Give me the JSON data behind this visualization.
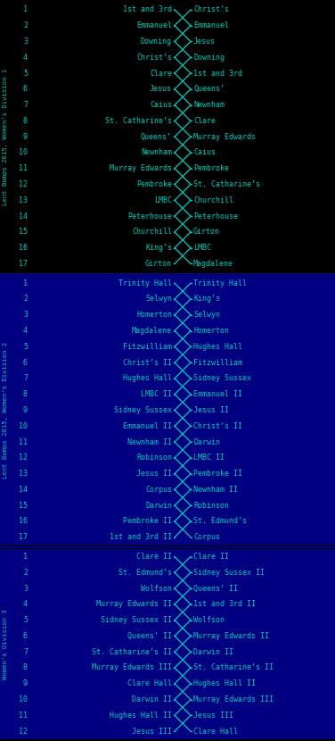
{
  "bg_div1": "#000000",
  "bg_div2": "#000080",
  "bg_div3": "#000080",
  "sidebar_div1": "#000000",
  "sidebar_div2": "#000080",
  "sidebar_div3": "#000080",
  "line_color": "#00CCBB",
  "text_color": "#00CCBB",
  "sep_color": "#0000AA",
  "font_size": 6.0,
  "num_font_size": 6.0,
  "sidebar_font_size": 5.2,
  "sidebar_texts": [
    "Lent Bumps 2015, Women’s Division 1",
    "Lent Bumps 2015, Women’s Division 2",
    "Women’s Division 3"
  ],
  "divisions": [
    {
      "rows": [
        {
          "num": 1,
          "left": "1st and 3rd",
          "right": "Christ’s"
        },
        {
          "num": 2,
          "left": "Emmanuel",
          "right": "Emmanuel"
        },
        {
          "num": 3,
          "left": "Downing",
          "right": "Jesus"
        },
        {
          "num": 4,
          "left": "Christ’s",
          "right": "Downing"
        },
        {
          "num": 5,
          "left": "Clare",
          "right": "1st and 3rd"
        },
        {
          "num": 6,
          "left": "Jesus",
          "right": "Queens’"
        },
        {
          "num": 7,
          "left": "Caius",
          "right": "Newnham"
        },
        {
          "num": 8,
          "left": "St. Catharine’s",
          "right": "Clare"
        },
        {
          "num": 9,
          "left": "Queens’",
          "right": "Murray Edwards"
        },
        {
          "num": 10,
          "left": "Newnham",
          "right": "Caius"
        },
        {
          "num": 11,
          "left": "Murray Edwards",
          "right": "Pembroke"
        },
        {
          "num": 12,
          "left": "Pembroke",
          "right": "St. Catharine’s"
        },
        {
          "num": 13,
          "left": "LMBC",
          "right": "Churchill"
        },
        {
          "num": 14,
          "left": "Peterhouse",
          "right": "Peterhouse"
        },
        {
          "num": 15,
          "left": "Churchill",
          "right": "Girton"
        },
        {
          "num": 16,
          "left": "King’s",
          "right": "LMBC"
        },
        {
          "num": 17,
          "left": "Girton",
          "right": "Magdalene"
        }
      ]
    },
    {
      "rows": [
        {
          "num": 1,
          "left": "Trinity Hall",
          "right": "Trinity Hall"
        },
        {
          "num": 2,
          "left": "Selwyn",
          "right": "King’s"
        },
        {
          "num": 3,
          "left": "Homerton",
          "right": "Selwyn"
        },
        {
          "num": 4,
          "left": "Magdalene",
          "right": "Homerton"
        },
        {
          "num": 5,
          "left": "Fitzwilliam",
          "right": "Hughes Hall"
        },
        {
          "num": 6,
          "left": "Christ’s II",
          "right": "Fitzwilliam"
        },
        {
          "num": 7,
          "left": "Hughes Hall",
          "right": "Sidney Sussex"
        },
        {
          "num": 8,
          "left": "LMBC II",
          "right": "Emmanuel II"
        },
        {
          "num": 9,
          "left": "Sidney Sussex",
          "right": "Jesus II"
        },
        {
          "num": 10,
          "left": "Emmanuel II",
          "right": "Christ’s II"
        },
        {
          "num": 11,
          "left": "Newnham II",
          "right": "Darwin"
        },
        {
          "num": 12,
          "left": "Robinson",
          "right": "LMBC II"
        },
        {
          "num": 13,
          "left": "Jesus II",
          "right": "Pembroke II"
        },
        {
          "num": 14,
          "left": "Corpus",
          "right": "Newnham II"
        },
        {
          "num": 15,
          "left": "Darwin",
          "right": "Robinson"
        },
        {
          "num": 16,
          "left": "Pembroke II",
          "right": "St. Edmund’s"
        },
        {
          "num": 17,
          "left": "1st and 3rd II",
          "right": "Corpus"
        }
      ]
    },
    {
      "rows": [
        {
          "num": 1,
          "left": "Clare II",
          "right": "Clare II"
        },
        {
          "num": 2,
          "left": "St. Edmund’s",
          "right": "Sidney Sussex II"
        },
        {
          "num": 3,
          "left": "Wolfson",
          "right": "Queens’ II"
        },
        {
          "num": 4,
          "left": "Murray Edwards II",
          "right": "1st and 3rd II"
        },
        {
          "num": 5,
          "left": "Sidney Sussex II",
          "right": "Wolfson"
        },
        {
          "num": 6,
          "left": "Queens’ II",
          "right": "Murray Edwards II"
        },
        {
          "num": 7,
          "left": "St. Catharine’s II",
          "right": "Darwin II"
        },
        {
          "num": 8,
          "left": "Murray Edwards III",
          "right": "St. Catharine’s II"
        },
        {
          "num": 9,
          "left": "Clare Hall",
          "right": "Hughes Hall II"
        },
        {
          "num": 10,
          "left": "Darwin II",
          "right": "Murray Edwards III"
        },
        {
          "num": 11,
          "left": "Hughes Hall II",
          "right": "Jesus III"
        },
        {
          "num": 12,
          "left": "Jesus III",
          "right": "Clare Hall"
        }
      ]
    }
  ]
}
